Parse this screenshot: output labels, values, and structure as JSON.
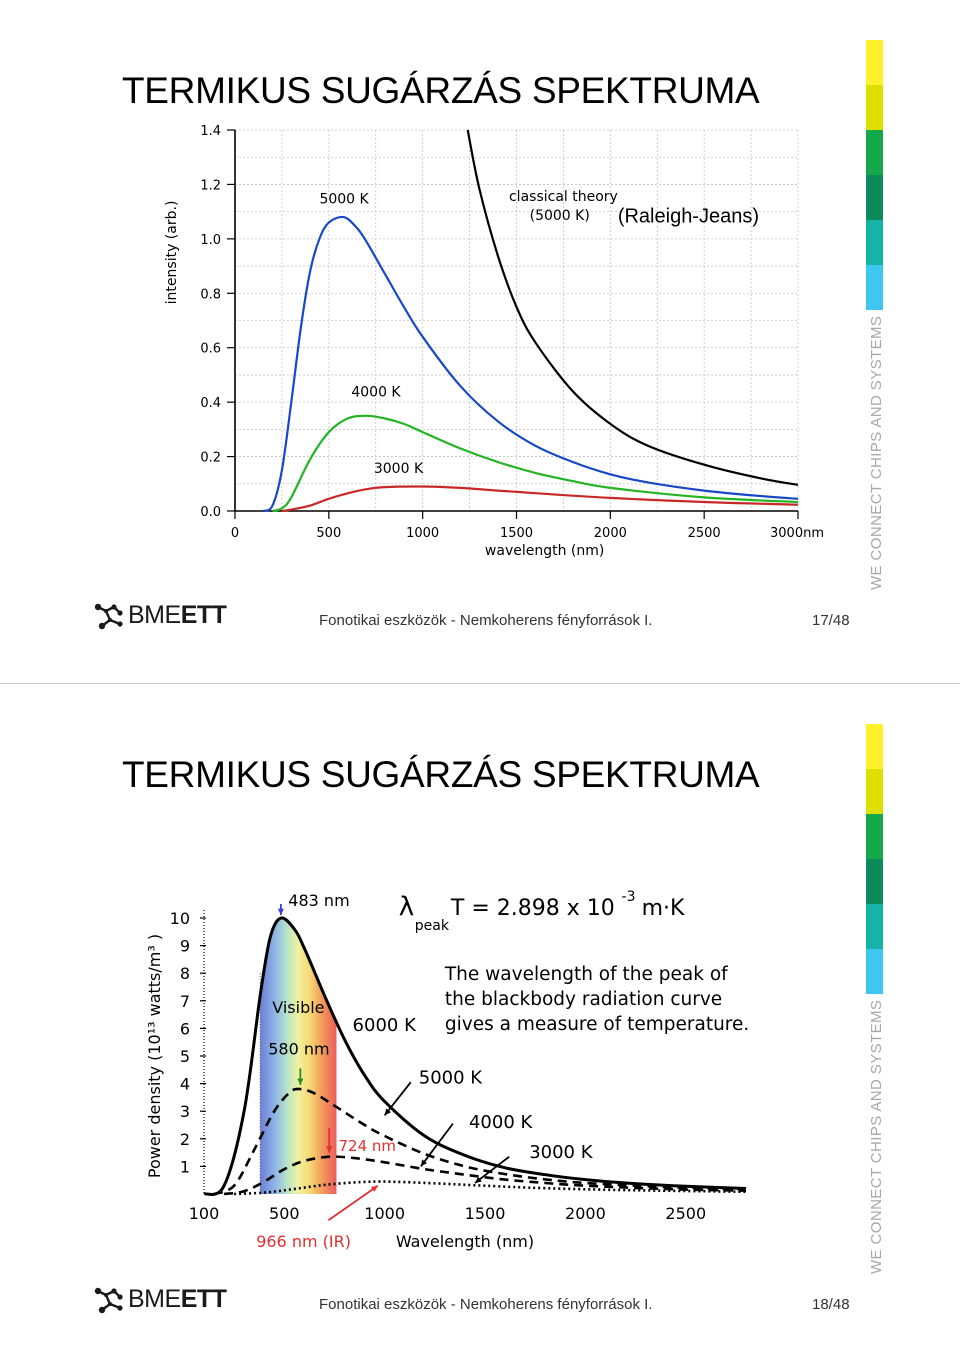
{
  "slides": [
    {
      "title": "TERMIKUS SUGÁRZÁS SPEKTRUMA",
      "footer": "Fonotikai eszközök - Nemkoherens fényforrások I.",
      "page": "17/48",
      "logo": {
        "prefix": "BME",
        "suffix": "ETT"
      },
      "tagline": "WE CONNECT CHIPS AND SYSTEMS"
    },
    {
      "title": "TERMIKUS SUGÁRZÁS SPEKTRUMA",
      "footer": "Fonotikai eszközök - Nemkoherens fényforrások I.",
      "page": "18/48",
      "logo": {
        "prefix": "BME",
        "suffix": "ETT"
      },
      "tagline": "WE CONNECT CHIPS AND SYSTEMS"
    }
  ],
  "colors": {
    "colorbar": [
      "#fff12a",
      "#dfe000",
      "#14a84a",
      "#0b8a5a",
      "#16b3a8",
      "#3fc8ef"
    ],
    "blue": "#1848c8",
    "green": "#22b422",
    "red": "#c82828",
    "black": "#000000"
  },
  "chart_data": [
    {
      "type": "line",
      "title": "",
      "xlabel": "wavelength (nm)",
      "ylabel": "intensity (arb.)",
      "xlim": [
        0,
        3000
      ],
      "ylim": [
        0,
        1.4
      ],
      "x_ticks": [
        "0",
        "500",
        "1000",
        "1500",
        "2000",
        "2500",
        "3000nm"
      ],
      "y_ticks": [
        "0.0",
        "0.2",
        "0.4",
        "0.6",
        "0.8",
        "1.0",
        "1.2",
        "1.4"
      ],
      "grid": true,
      "annotations": {
        "t5000": "5000 K",
        "t4000": "4000 K",
        "t3000": "3000 K",
        "classical1": "classical theory",
        "classical2": "(5000 K)",
        "rj": "(Raleigh-Jeans)"
      },
      "series": [
        {
          "name": "5000 K",
          "color": "#1848c8",
          "points": [
            [
              150,
              0
            ],
            [
              200,
              0.02
            ],
            [
              250,
              0.15
            ],
            [
              300,
              0.4
            ],
            [
              350,
              0.67
            ],
            [
              400,
              0.88
            ],
            [
              450,
              1.0
            ],
            [
              500,
              1.06
            ],
            [
              580,
              1.08
            ],
            [
              650,
              1.04
            ],
            [
              700,
              0.99
            ],
            [
              800,
              0.87
            ],
            [
              900,
              0.75
            ],
            [
              1000,
              0.64
            ],
            [
              1200,
              0.46
            ],
            [
              1400,
              0.33
            ],
            [
              1600,
              0.24
            ],
            [
              1800,
              0.18
            ],
            [
              2000,
              0.135
            ],
            [
              2200,
              0.105
            ],
            [
              2500,
              0.075
            ],
            [
              2800,
              0.055
            ],
            [
              3000,
              0.045
            ]
          ]
        },
        {
          "name": "4000 K",
          "color": "#22b422",
          "points": [
            [
              200,
              0
            ],
            [
              250,
              0.01
            ],
            [
              300,
              0.05
            ],
            [
              400,
              0.19
            ],
            [
              500,
              0.29
            ],
            [
              600,
              0.34
            ],
            [
              700,
              0.35
            ],
            [
              800,
              0.34
            ],
            [
              900,
              0.32
            ],
            [
              1000,
              0.29
            ],
            [
              1200,
              0.23
            ],
            [
              1400,
              0.18
            ],
            [
              1600,
              0.14
            ],
            [
              1800,
              0.11
            ],
            [
              2000,
              0.085
            ],
            [
              2500,
              0.05
            ],
            [
              3000,
              0.033
            ]
          ]
        },
        {
          "name": "3000 K",
          "color": "#c82828",
          "points": [
            [
              250,
              0
            ],
            [
              300,
              0.005
            ],
            [
              400,
              0.02
            ],
            [
              500,
              0.045
            ],
            [
              600,
              0.065
            ],
            [
              700,
              0.08
            ],
            [
              800,
              0.088
            ],
            [
              1000,
              0.09
            ],
            [
              1200,
              0.085
            ],
            [
              1500,
              0.07
            ],
            [
              2000,
              0.048
            ],
            [
              2500,
              0.033
            ],
            [
              3000,
              0.023
            ]
          ]
        },
        {
          "name": "classical theory (5000 K)",
          "color": "#000000",
          "points": [
            [
              1240,
              1.4
            ],
            [
              1300,
              1.19
            ],
            [
              1400,
              0.94
            ],
            [
              1500,
              0.75
            ],
            [
              1600,
              0.62
            ],
            [
              1800,
              0.44
            ],
            [
              2000,
              0.32
            ],
            [
              2200,
              0.24
            ],
            [
              2500,
              0.17
            ],
            [
              2800,
              0.12
            ],
            [
              3000,
              0.096
            ]
          ]
        }
      ]
    },
    {
      "type": "line",
      "title": "",
      "xlabel": "Wavelength (nm)",
      "ylabel": "Power density (10¹³ watts/m³ )",
      "xlim": [
        100,
        2800
      ],
      "ylim": [
        0,
        10
      ],
      "x_ticks": [
        "100",
        "500",
        "1000",
        "1500",
        "2000",
        "2500"
      ],
      "y_ticks": [
        "1",
        "2",
        "3",
        "4",
        "5",
        "6",
        "7",
        "8",
        "9",
        "10"
      ],
      "formula": {
        "lambda": "λ",
        "sub": "peak",
        "main": "T = 2.898  x 10",
        "exp": "-3",
        "unit": " m·K"
      },
      "annotations": {
        "peak483": "483 nm",
        "visible": "Visible",
        "n580": "580 nm",
        "n724": "724 nm",
        "n966": "966 nm (IR)",
        "t6000": "6000 K",
        "t5000": "5000 K",
        "t4000": "4000 K",
        "t3000": "3000 K",
        "desc1": "The wavelength of the peak of",
        "desc2": "the blackbody radiation curve",
        "desc3": "gives a measure of temperature."
      },
      "visible_band": [
        380,
        760
      ],
      "series": [
        {
          "name": "6000 K",
          "style": "solid",
          "points": [
            [
              100,
              0
            ],
            [
              200,
              0.3
            ],
            [
              300,
              3.0
            ],
            [
              380,
              7.2
            ],
            [
              430,
              9.3
            ],
            [
              483,
              10.0
            ],
            [
              550,
              9.6
            ],
            [
              600,
              8.9
            ],
            [
              700,
              7.2
            ],
            [
              800,
              5.6
            ],
            [
              900,
              4.3
            ],
            [
              1000,
              3.35
            ],
            [
              1200,
              2.1
            ],
            [
              1400,
              1.4
            ],
            [
              1600,
              0.95
            ],
            [
              1800,
              0.7
            ],
            [
              2000,
              0.52
            ],
            [
              2200,
              0.4
            ],
            [
              2500,
              0.28
            ],
            [
              2800,
              0.2
            ]
          ]
        },
        {
          "name": "5000 K",
          "style": "dashed",
          "points": [
            [
              150,
              0
            ],
            [
              250,
              0.3
            ],
            [
              350,
              1.6
            ],
            [
              450,
              3.0
            ],
            [
              530,
              3.7
            ],
            [
              580,
              3.8
            ],
            [
              650,
              3.65
            ],
            [
              750,
              3.2
            ],
            [
              900,
              2.5
            ],
            [
              1000,
              2.1
            ],
            [
              1200,
              1.45
            ],
            [
              1400,
              1.0
            ],
            [
              1600,
              0.72
            ],
            [
              1800,
              0.53
            ],
            [
              2000,
              0.4
            ],
            [
              2400,
              0.25
            ],
            [
              2800,
              0.16
            ]
          ]
        },
        {
          "name": "4000 K",
          "style": "dashed",
          "points": [
            [
              200,
              0
            ],
            [
              300,
              0.1
            ],
            [
              400,
              0.45
            ],
            [
              500,
              0.9
            ],
            [
              600,
              1.2
            ],
            [
              724,
              1.35
            ],
            [
              850,
              1.3
            ],
            [
              1000,
              1.15
            ],
            [
              1200,
              0.9
            ],
            [
              1400,
              0.7
            ],
            [
              1600,
              0.52
            ],
            [
              1800,
              0.4
            ],
            [
              2000,
              0.3
            ],
            [
              2400,
              0.18
            ],
            [
              2800,
              0.12
            ]
          ]
        },
        {
          "name": "3000 K",
          "style": "dotted",
          "points": [
            [
              250,
              0
            ],
            [
              400,
              0.05
            ],
            [
              550,
              0.18
            ],
            [
              700,
              0.33
            ],
            [
              850,
              0.42
            ],
            [
              966,
              0.45
            ],
            [
              1100,
              0.43
            ],
            [
              1300,
              0.37
            ],
            [
              1500,
              0.3
            ],
            [
              1800,
              0.21
            ],
            [
              2200,
              0.14
            ],
            [
              2800,
              0.08
            ]
          ]
        }
      ]
    }
  ]
}
